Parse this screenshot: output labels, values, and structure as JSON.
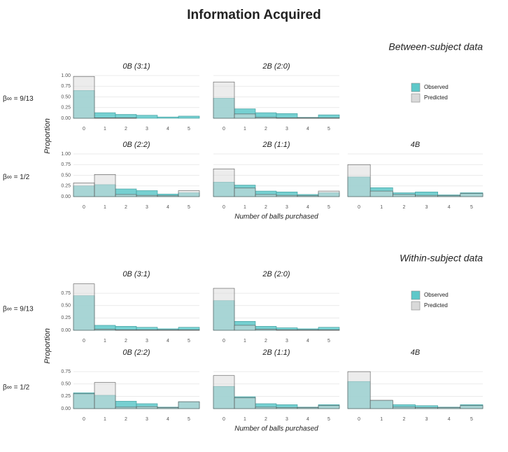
{
  "title": "Information Acquired",
  "sections": [
    {
      "title": "Between-subject data",
      "y_label": "Proportion",
      "x_label": "Number of balls purchased",
      "row_labels": [
        "β∞ = 9/13",
        "β∞ = 1/2"
      ]
    },
    {
      "title": "Within-subject data",
      "y_label": "Proportion",
      "x_label": "Number of balls purchased",
      "row_labels": [
        "β∞ = 9/13",
        "β∞ = 1/2"
      ]
    }
  ],
  "chart_data": [
    {
      "type": "bar",
      "title": "0B (3:1)",
      "categories": [
        "0",
        "1",
        "2",
        "3",
        "4",
        "5"
      ],
      "ylim": [
        0,
        1.0
      ],
      "grid": true,
      "yticks": [
        {
          "value": 0,
          "label": "0.00"
        },
        {
          "value": 0.25,
          "label": "0.25"
        },
        {
          "value": 0.5,
          "label": "0.50"
        },
        {
          "value": 0.75,
          "label": "0.75"
        },
        {
          "value": 1,
          "label": "1.00"
        }
      ],
      "series": [
        {
          "name": "Observed",
          "color": "#5ec8c9",
          "values": [
            0.65,
            0.13,
            0.09,
            0.07,
            0.03,
            0.05
          ]
        },
        {
          "name": "Predicted",
          "color": "#d9d9d9",
          "values": [
            0.98,
            0.01,
            0.01,
            0,
            0,
            0
          ]
        }
      ]
    },
    {
      "type": "bar",
      "title": "2B (2:0)",
      "categories": [
        "0",
        "1",
        "2",
        "3",
        "4",
        "5"
      ],
      "ylim": [
        0,
        1.0
      ],
      "grid": true,
      "yticks": [
        {
          "value": 0,
          "label": "0.00"
        },
        {
          "value": 0.25,
          "label": "0.25"
        },
        {
          "value": 0.5,
          "label": "0.50"
        },
        {
          "value": 0.75,
          "label": "0.75"
        },
        {
          "value": 1,
          "label": "1.00"
        }
      ],
      "series": [
        {
          "name": "Observed",
          "color": "#5ec8c9",
          "values": [
            0.47,
            0.22,
            0.13,
            0.11,
            0.02,
            0.08
          ]
        },
        {
          "name": "Predicted",
          "color": "#d9d9d9",
          "values": [
            0.85,
            0.1,
            0.02,
            0.01,
            0.01,
            0.01
          ]
        }
      ]
    },
    {
      "type": "bar",
      "title": "0B (2:2)",
      "categories": [
        "0",
        "1",
        "2",
        "3",
        "4",
        "5"
      ],
      "ylim": [
        0,
        1.0
      ],
      "grid": true,
      "yticks": [
        {
          "value": 0,
          "label": "0.00"
        },
        {
          "value": 0.25,
          "label": "0.25"
        },
        {
          "value": 0.5,
          "label": "0.50"
        },
        {
          "value": 0.75,
          "label": "0.75"
        },
        {
          "value": 1,
          "label": "1.00"
        }
      ],
      "series": [
        {
          "name": "Observed",
          "color": "#5ec8c9",
          "values": [
            0.25,
            0.28,
            0.18,
            0.14,
            0.06,
            0.09
          ]
        },
        {
          "name": "Predicted",
          "color": "#d9d9d9",
          "values": [
            0.32,
            0.52,
            0.05,
            0.03,
            0.02,
            0.14
          ]
        }
      ]
    },
    {
      "type": "bar",
      "title": "2B (1:1)",
      "categories": [
        "0",
        "1",
        "2",
        "3",
        "4",
        "5"
      ],
      "ylim": [
        0,
        1.0
      ],
      "grid": true,
      "yticks": [
        {
          "value": 0,
          "label": "0.00"
        },
        {
          "value": 0.25,
          "label": "0.25"
        },
        {
          "value": 0.5,
          "label": "0.50"
        },
        {
          "value": 0.75,
          "label": "0.75"
        },
        {
          "value": 1,
          "label": "1.00"
        }
      ],
      "series": [
        {
          "name": "Observed",
          "color": "#5ec8c9",
          "values": [
            0.34,
            0.27,
            0.13,
            0.11,
            0.05,
            0.09
          ]
        },
        {
          "name": "Predicted",
          "color": "#d9d9d9",
          "values": [
            0.65,
            0.2,
            0.05,
            0.03,
            0.02,
            0.13
          ]
        }
      ]
    },
    {
      "type": "bar",
      "title": "4B",
      "categories": [
        "0",
        "1",
        "2",
        "3",
        "4",
        "5"
      ],
      "ylim": [
        0,
        1.0
      ],
      "grid": true,
      "yticks": [
        {
          "value": 0,
          "label": "0.00"
        },
        {
          "value": 0.25,
          "label": "0.25"
        },
        {
          "value": 0.5,
          "label": "0.50"
        },
        {
          "value": 0.75,
          "label": "0.75"
        },
        {
          "value": 1,
          "label": "1.00"
        }
      ],
      "series": [
        {
          "name": "Observed",
          "color": "#5ec8c9",
          "values": [
            0.46,
            0.21,
            0.09,
            0.11,
            0.04,
            0.09
          ]
        },
        {
          "name": "Predicted",
          "color": "#d9d9d9",
          "values": [
            0.75,
            0.13,
            0.05,
            0.03,
            0.02,
            0.07
          ]
        }
      ]
    },
    {
      "type": "bar",
      "title": "0B (3:1)",
      "categories": [
        "0",
        "1",
        "2",
        "3",
        "4",
        "5"
      ],
      "ylim": [
        0,
        0.95
      ],
      "grid": true,
      "yticks": [
        {
          "value": 0,
          "label": "0.00"
        },
        {
          "value": 0.25,
          "label": "0.25"
        },
        {
          "value": 0.5,
          "label": "0.50"
        },
        {
          "value": 0.75,
          "label": "0.75"
        }
      ],
      "series": [
        {
          "name": "Observed",
          "color": "#5ec8c9",
          "values": [
            0.7,
            0.1,
            0.08,
            0.06,
            0.03,
            0.06
          ]
        },
        {
          "name": "Predicted",
          "color": "#d9d9d9",
          "values": [
            0.94,
            0.02,
            0.01,
            0.01,
            0.01,
            0.01
          ]
        }
      ]
    },
    {
      "type": "bar",
      "title": "2B (2:0)",
      "categories": [
        "0",
        "1",
        "2",
        "3",
        "4",
        "5"
      ],
      "ylim": [
        0,
        0.95
      ],
      "grid": true,
      "yticks": [
        {
          "value": 0,
          "label": "0.00"
        },
        {
          "value": 0.25,
          "label": "0.25"
        },
        {
          "value": 0.5,
          "label": "0.50"
        },
        {
          "value": 0.75,
          "label": "0.75"
        }
      ],
      "series": [
        {
          "name": "Observed",
          "color": "#5ec8c9",
          "values": [
            0.6,
            0.18,
            0.08,
            0.05,
            0.03,
            0.06
          ]
        },
        {
          "name": "Predicted",
          "color": "#d9d9d9",
          "values": [
            0.85,
            0.1,
            0.02,
            0.01,
            0.01,
            0.01
          ]
        }
      ]
    },
    {
      "type": "bar",
      "title": "0B (2:2)",
      "categories": [
        "0",
        "1",
        "2",
        "3",
        "4",
        "5"
      ],
      "ylim": [
        0,
        0.95
      ],
      "grid": true,
      "yticks": [
        {
          "value": 0,
          "label": "0.00"
        },
        {
          "value": 0.25,
          "label": "0.25"
        },
        {
          "value": 0.5,
          "label": "0.50"
        },
        {
          "value": 0.75,
          "label": "0.75"
        }
      ],
      "series": [
        {
          "name": "Observed",
          "color": "#5ec8c9",
          "values": [
            0.32,
            0.27,
            0.15,
            0.1,
            0.03,
            0.14
          ]
        },
        {
          "name": "Predicted",
          "color": "#d9d9d9",
          "values": [
            0.3,
            0.53,
            0.03,
            0.04,
            0.02,
            0.14
          ]
        }
      ]
    },
    {
      "type": "bar",
      "title": "2B (1:1)",
      "categories": [
        "0",
        "1",
        "2",
        "3",
        "4",
        "5"
      ],
      "ylim": [
        0,
        0.95
      ],
      "grid": true,
      "yticks": [
        {
          "value": 0,
          "label": "0.00"
        },
        {
          "value": 0.25,
          "label": "0.25"
        },
        {
          "value": 0.5,
          "label": "0.50"
        },
        {
          "value": 0.75,
          "label": "0.75"
        }
      ],
      "series": [
        {
          "name": "Observed",
          "color": "#5ec8c9",
          "values": [
            0.45,
            0.24,
            0.1,
            0.08,
            0.03,
            0.08
          ]
        },
        {
          "name": "Predicted",
          "color": "#d9d9d9",
          "values": [
            0.67,
            0.22,
            0.03,
            0.02,
            0.02,
            0.06
          ]
        }
      ]
    },
    {
      "type": "bar",
      "title": "4B",
      "categories": [
        "0",
        "1",
        "2",
        "3",
        "4",
        "5"
      ],
      "ylim": [
        0,
        0.95
      ],
      "grid": true,
      "yticks": [
        {
          "value": 0,
          "label": "0.00"
        },
        {
          "value": 0.25,
          "label": "0.25"
        },
        {
          "value": 0.5,
          "label": "0.50"
        },
        {
          "value": 0.75,
          "label": "0.75"
        }
      ],
      "series": [
        {
          "name": "Observed",
          "color": "#5ec8c9",
          "values": [
            0.55,
            0.16,
            0.08,
            0.06,
            0.03,
            0.08
          ]
        },
        {
          "name": "Predicted",
          "color": "#d9d9d9",
          "values": [
            0.75,
            0.17,
            0.03,
            0.02,
            0.02,
            0.06
          ]
        }
      ]
    }
  ]
}
